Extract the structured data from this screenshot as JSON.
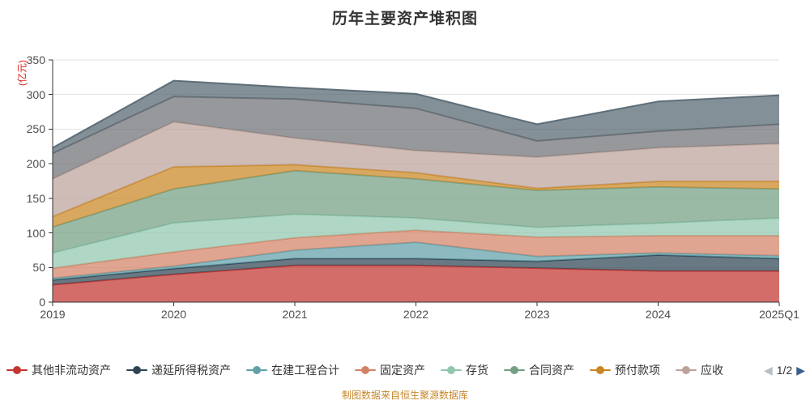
{
  "title": "历年主要资产堆积图",
  "y_axis_unit_label": "(亿元)",
  "footer_note": "制图数据来自恒生聚源数据库",
  "legend": {
    "page_indicator": "1/2",
    "prev_icon": "◀",
    "next_icon": "▶"
  },
  "colors": {
    "title_text": "#333333",
    "axis_line": "#333333",
    "grid_line": "#e3e3e3",
    "axis_tick_text": "#4e4e4e",
    "unit_label_text": "#e01f1f",
    "footer_text": "#c5872c",
    "legend_text": "#333333",
    "pager_prev_arrow": "#b9bdc6",
    "pager_next_arrow": "#38618c"
  },
  "chart_data": {
    "type": "area",
    "stacked": true,
    "title": "历年主要资产堆积图",
    "ylabel": "(亿元)",
    "ylim": [
      0,
      350
    ],
    "y_ticks": [
      0,
      50,
      100,
      150,
      200,
      250,
      300,
      350
    ],
    "grid": true,
    "legend_position": "bottom",
    "x": [
      "2019",
      "2020",
      "2021",
      "2022",
      "2023",
      "2024",
      "2025Q1"
    ],
    "series": [
      {
        "name": "其他非流动资产",
        "color": "#c23531",
        "values": [
          25,
          40,
          53,
          53,
          49,
          45,
          45
        ]
      },
      {
        "name": "递延所得税资产",
        "color": "#2f4554",
        "values": [
          7,
          8.5,
          10,
          10,
          10,
          23,
          18
        ]
      },
      {
        "name": "在建工程合计",
        "color": "#61a0a8",
        "values": [
          2.5,
          3.5,
          12,
          23.5,
          7,
          3,
          4
        ]
      },
      {
        "name": "固定资产",
        "color": "#d48265",
        "values": [
          14.5,
          20.5,
          18,
          17.5,
          28,
          25,
          29
        ]
      },
      {
        "name": "存货",
        "color": "#91c7ae",
        "values": [
          22,
          42,
          34,
          17.5,
          14,
          18,
          25.5
        ]
      },
      {
        "name": "合同资产",
        "color": "#749f83",
        "values": [
          37.5,
          49,
          63,
          56.5,
          53.5,
          52.5,
          42
        ]
      },
      {
        "name": "预付款项",
        "color": "#ca8622",
        "values": [
          15,
          32,
          8.5,
          9,
          3,
          8,
          11
        ]
      },
      {
        "name": "应收",
        "color": "#bda29a",
        "values": [
          54.5,
          65,
          38.5,
          32,
          45,
          48.5,
          54.5
        ]
      },
      {
        "name": "",
        "color": "#6e7074",
        "values": [
          37,
          36.5,
          56.5,
          61,
          23.5,
          24,
          28
        ],
        "legend_visible": false
      },
      {
        "name": "",
        "color": "#546570",
        "values": [
          8,
          23,
          16.5,
          21,
          24,
          43,
          42
        ],
        "legend_visible": false
      }
    ],
    "stack_totals": [
      223,
      320,
      310,
      301,
      257,
      290,
      299
    ]
  }
}
